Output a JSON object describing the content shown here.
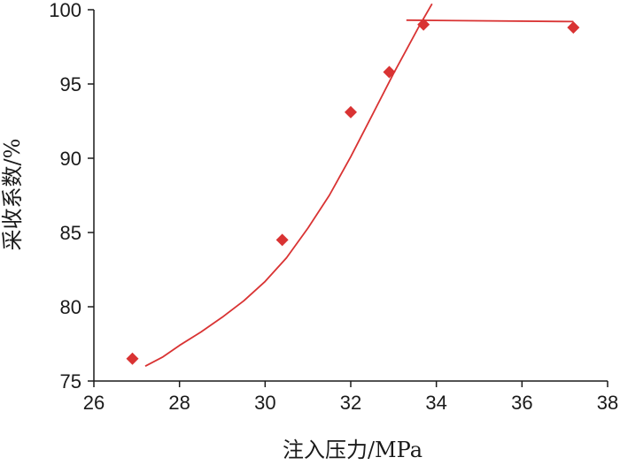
{
  "chart_data": {
    "type": "scatter",
    "xlabel": "注入压力/MPa",
    "ylabel": "采收系数/%",
    "xlim": [
      26,
      38
    ],
    "ylim": [
      75,
      100
    ],
    "xticks": [
      26,
      28,
      30,
      32,
      34,
      36,
      38
    ],
    "yticks": [
      75,
      80,
      85,
      90,
      95,
      100
    ],
    "series": [
      {
        "kind": "points",
        "marker": "diamond",
        "color": "#d93333",
        "x": [
          26.9,
          30.4,
          32.0,
          32.9,
          33.7,
          37.2
        ],
        "y": [
          76.5,
          84.5,
          93.1,
          95.8,
          99.0,
          98.8
        ]
      },
      {
        "kind": "fit-curve",
        "color": "#d93333",
        "x": [
          27.2,
          27.6,
          28.0,
          28.5,
          29.0,
          29.5,
          30.0,
          30.5,
          31.0,
          31.5,
          32.0,
          32.5,
          33.0,
          33.3,
          33.6,
          33.9
        ],
        "y": [
          76.0,
          76.6,
          77.4,
          78.3,
          79.3,
          80.4,
          81.7,
          83.3,
          85.3,
          87.5,
          90.1,
          92.9,
          95.7,
          97.3,
          98.9,
          100.4
        ]
      },
      {
        "kind": "fit-line",
        "color": "#d93333",
        "x": [
          33.3,
          37.2
        ],
        "y": [
          99.3,
          99.2
        ]
      }
    ]
  }
}
